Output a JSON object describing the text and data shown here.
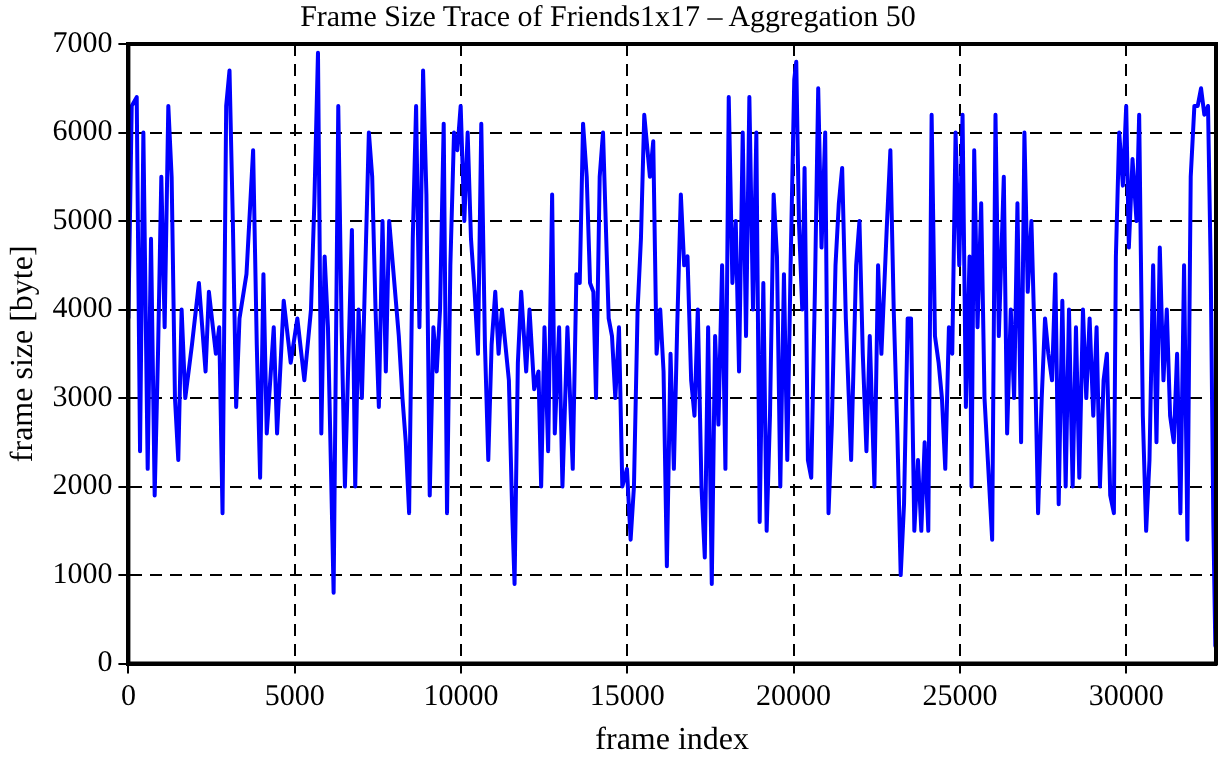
{
  "chart_data": {
    "type": "line",
    "title": "Frame Size Trace of Friends1x17 – Aggregation 50",
    "xlabel": "frame index",
    "ylabel": "frame size [byte]",
    "xlim": [
      0,
      32700
    ],
    "ylim": [
      0,
      7000
    ],
    "xticks": [
      0,
      5000,
      10000,
      15000,
      20000,
      25000,
      30000
    ],
    "yticks": [
      0,
      1000,
      2000,
      3000,
      4000,
      5000,
      6000,
      7000
    ],
    "grid": true,
    "legend": false,
    "marker": "none",
    "line_style": "solid",
    "series": [
      {
        "color": "#0000ff",
        "x": [
          0,
          100,
          250,
          350,
          450,
          580,
          680,
          790,
          890,
          990,
          1090,
          1200,
          1300,
          1400,
          1500,
          1600,
          1710,
          1910,
          2120,
          2320,
          2420,
          2630,
          2730,
          2830,
          2940,
          3040,
          3140,
          3240,
          3340,
          3550,
          3750,
          3860,
          3960,
          4060,
          4160,
          4370,
          4470,
          4670,
          4880,
          5080,
          5290,
          5490,
          5590,
          5700,
          5800,
          5900,
          6000,
          6170,
          6310,
          6410,
          6510,
          6720,
          6820,
          6920,
          7020,
          7230,
          7330,
          7430,
          7530,
          7640,
          7740,
          7840,
          8130,
          8240,
          8340,
          8440,
          8550,
          8650,
          8750,
          8860,
          8960,
          9060,
          9170,
          9270,
          9370,
          9480,
          9580,
          9680,
          9790,
          9890,
          9990,
          10100,
          10200,
          10300,
          10410,
          10510,
          10610,
          10720,
          10820,
          10920,
          11030,
          11130,
          11230,
          11440,
          11540,
          11610,
          11710,
          11810,
          11960,
          12060,
          12200,
          12330,
          12410,
          12510,
          12620,
          12740,
          12820,
          12950,
          13050,
          13200,
          13360,
          13470,
          13570,
          13670,
          13780,
          13880,
          13980,
          14060,
          14170,
          14270,
          14440,
          14540,
          14640,
          14750,
          14850,
          14990,
          15100,
          15200,
          15310,
          15410,
          15510,
          15680,
          15780,
          15880,
          15990,
          16090,
          16190,
          16300,
          16400,
          16500,
          16610,
          16710,
          16810,
          16920,
          17020,
          17120,
          17230,
          17330,
          17430,
          17540,
          17640,
          17740,
          17850,
          17950,
          18050,
          18160,
          18260,
          18360,
          18470,
          18570,
          18670,
          18780,
          18880,
          18980,
          19090,
          19190,
          19290,
          19400,
          19500,
          19600,
          19710,
          19810,
          19910,
          20020,
          20080,
          20160,
          20260,
          20330,
          20430,
          20530,
          20640,
          20740,
          20840,
          20950,
          21050,
          21150,
          21260,
          21360,
          21460,
          21570,
          21730,
          21880,
          21980,
          22080,
          22190,
          22290,
          22430,
          22540,
          22640,
          22810,
          22910,
          23010,
          23120,
          23220,
          23320,
          23430,
          23530,
          23630,
          23740,
          23840,
          23940,
          24050,
          24150,
          24250,
          24360,
          24460,
          24560,
          24670,
          24770,
          24870,
          24980,
          25080,
          25180,
          25290,
          25350,
          25430,
          25530,
          25640,
          25740,
          25840,
          25970,
          26070,
          26170,
          26320,
          26420,
          26530,
          26630,
          26730,
          26840,
          26940,
          27040,
          27150,
          27250,
          27350,
          27460,
          27560,
          27660,
          27770,
          27870,
          27970,
          28080,
          28180,
          28280,
          28390,
          28490,
          28590,
          28700,
          28800,
          28900,
          29010,
          29110,
          29210,
          29320,
          29420,
          29520,
          29630,
          29690,
          29790,
          29900,
          30000,
          30080,
          30190,
          30310,
          30390,
          30500,
          30600,
          30700,
          30810,
          30910,
          31010,
          31120,
          31220,
          31320,
          31430,
          31530,
          31630,
          31740,
          31840,
          31940,
          32050,
          32150,
          32250,
          32350,
          32460,
          32540,
          32620,
          32680,
          32700
        ],
        "values": [
          3900,
          6300,
          6400,
          2400,
          6000,
          2200,
          4800,
          1900,
          3500,
          5500,
          3800,
          6300,
          5500,
          3000,
          2300,
          4000,
          3000,
          3600,
          4300,
          3300,
          4200,
          3500,
          3800,
          1700,
          6300,
          6700,
          5000,
          2900,
          3900,
          4400,
          5800,
          3600,
          2100,
          4400,
          2600,
          3800,
          2600,
          4100,
          3400,
          3900,
          3200,
          4000,
          5200,
          6900,
          2600,
          4600,
          3800,
          800,
          6300,
          3800,
          2000,
          4900,
          2000,
          4000,
          3000,
          6000,
          5500,
          4000,
          2900,
          5000,
          3300,
          5000,
          3700,
          3000,
          2500,
          1700,
          4800,
          6300,
          3800,
          6700,
          5300,
          1900,
          3800,
          3300,
          4000,
          6100,
          1700,
          4500,
          6000,
          5800,
          6300,
          5000,
          6000,
          4800,
          4200,
          3500,
          6100,
          3600,
          2300,
          3600,
          4200,
          3500,
          4000,
          3200,
          1700,
          900,
          3400,
          4200,
          3300,
          4000,
          3100,
          3300,
          2000,
          3800,
          2400,
          5300,
          2600,
          3800,
          2000,
          3800,
          2200,
          4400,
          4300,
          6100,
          5500,
          4300,
          4200,
          3000,
          5500,
          6000,
          3900,
          3700,
          3000,
          3800,
          2000,
          2200,
          1400,
          2000,
          4000,
          4800,
          6200,
          5500,
          5900,
          3500,
          4000,
          3300,
          1100,
          3500,
          2200,
          3800,
          5300,
          4500,
          4600,
          3200,
          2800,
          4000,
          2000,
          1200,
          3800,
          900,
          3700,
          2700,
          4500,
          2200,
          6400,
          4300,
          5000,
          3300,
          6000,
          3700,
          6400,
          4000,
          6000,
          1600,
          4300,
          1500,
          2800,
          5300,
          4600,
          2000,
          4400,
          2300,
          4500,
          6600,
          6800,
          5000,
          4000,
          5600,
          2300,
          2100,
          4200,
          6500,
          4700,
          6000,
          1700,
          2700,
          4500,
          5200,
          5600,
          3900,
          2300,
          4500,
          5000,
          3500,
          2400,
          3700,
          2000,
          4500,
          3500,
          5000,
          5800,
          4000,
          2600,
          1000,
          1800,
          3900,
          3900,
          1500,
          2300,
          1500,
          2500,
          1500,
          6200,
          3700,
          3400,
          3000,
          2200,
          3800,
          3500,
          6000,
          4500,
          6200,
          2900,
          4600,
          2000,
          5800,
          3800,
          5200,
          3000,
          2300,
          1400,
          6200,
          3700,
          5500,
          2600,
          4000,
          3000,
          5200,
          2500,
          6000,
          4200,
          5000,
          3600,
          1700,
          3000,
          3900,
          3500,
          3200,
          4400,
          1800,
          4100,
          2000,
          4000,
          2000,
          3800,
          2100,
          4000,
          3000,
          3900,
          2800,
          3800,
          2000,
          3200,
          3500,
          1900,
          1700,
          4600,
          6000,
          5400,
          6300,
          4700,
          5700,
          5000,
          6200,
          2800,
          1500,
          2300,
          4500,
          2500,
          4700,
          3200,
          4000,
          2800,
          2500,
          3500,
          1700,
          4500,
          1400,
          5500,
          6300,
          6300,
          6500,
          6200,
          6300,
          4500,
          1600,
          200,
          600
        ]
      }
    ]
  }
}
